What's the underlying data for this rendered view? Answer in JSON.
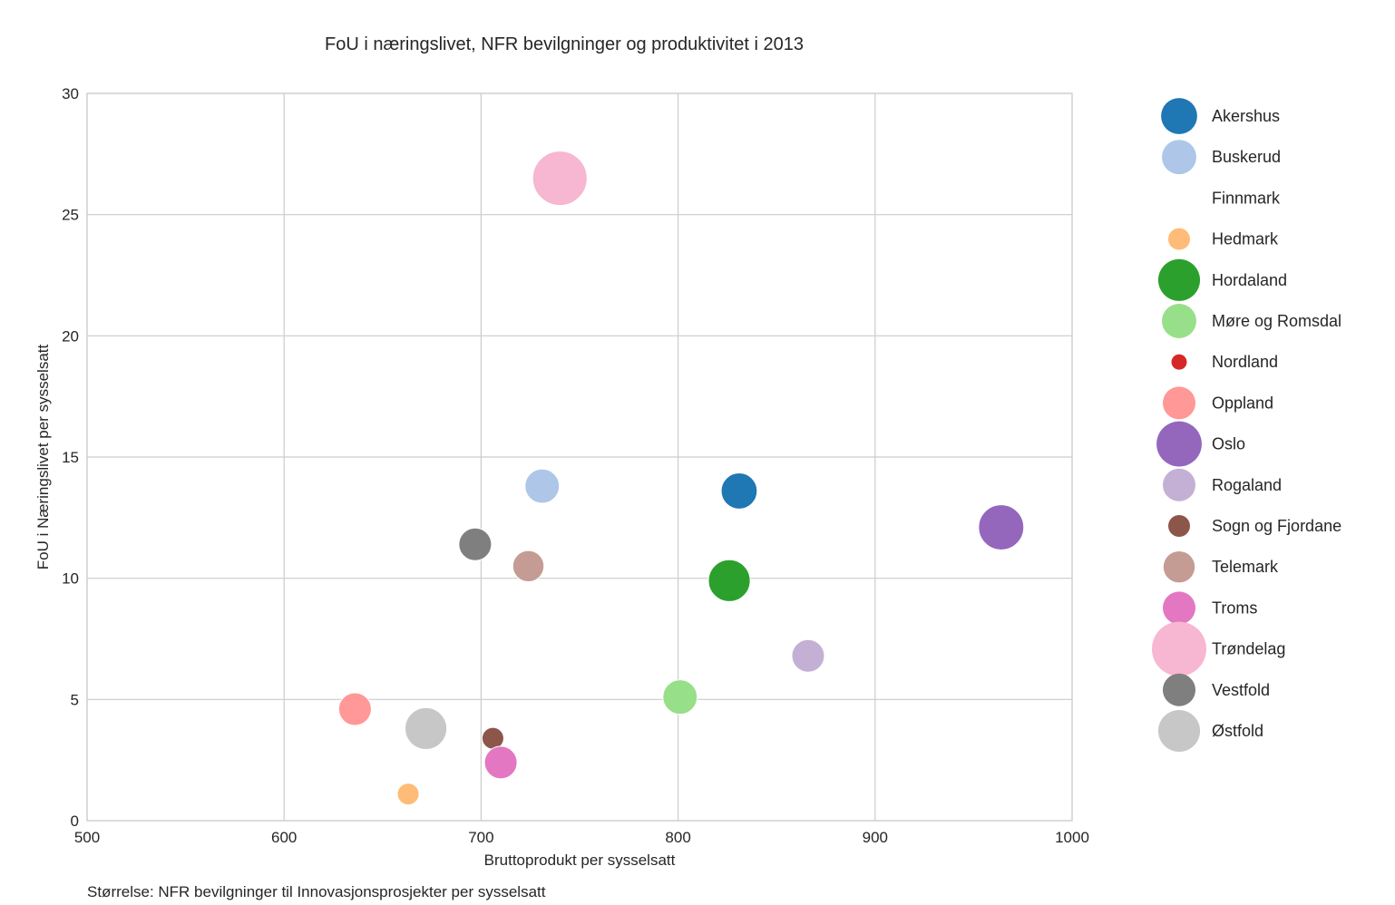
{
  "chart_data": {
    "type": "scatter",
    "title": "FoU i næringslivet, NFR bevilgninger og produktivitet i 2013",
    "xlabel": "Bruttoprodukt per sysselsatt",
    "ylabel": "FoU i Næringslivet per sysselsatt",
    "caption": "Størrelse: NFR bevilgninger til Innovasjonsprosjekter per sysselsatt",
    "xlim": [
      500,
      1000
    ],
    "ylim": [
      0,
      30
    ],
    "x_ticks": [
      "500",
      "600",
      "700",
      "800",
      "900",
      "1000"
    ],
    "y_ticks": [
      "0",
      "5",
      "10",
      "15",
      "20",
      "25",
      "30"
    ],
    "grid": true,
    "legend_position": "right",
    "size_encoding": "NFR bevilgninger til Innovasjonsprosjekter per sysselsatt",
    "series": [
      {
        "name": "Akershus",
        "x": 831,
        "y": 13.6,
        "size": 0.44,
        "color": "#1f77b4"
      },
      {
        "name": "Buskerud",
        "x": 731,
        "y": 13.8,
        "size": 0.4,
        "color": "#aec7e8"
      },
      {
        "name": "Finnmark",
        "x": null,
        "y": null,
        "size": 0,
        "color": "#ffffff"
      },
      {
        "name": "Hedmark",
        "x": 663,
        "y": 1.1,
        "size": 0.16,
        "color": "#ffbb78"
      },
      {
        "name": "Hordaland",
        "x": 826,
        "y": 9.9,
        "size": 0.59,
        "color": "#2ca02c"
      },
      {
        "name": "Møre og Romsdal",
        "x": 801,
        "y": 5.1,
        "size": 0.4,
        "color": "#98df8a"
      },
      {
        "name": "Nordland",
        "x": null,
        "y": null,
        "size": 0.08,
        "color": "#d62728"
      },
      {
        "name": "Oppland",
        "x": 636,
        "y": 4.6,
        "size": 0.36,
        "color": "#ff9896"
      },
      {
        "name": "Oslo",
        "x": 964,
        "y": 12.1,
        "size": 0.69,
        "color": "#9467bd"
      },
      {
        "name": "Rogaland",
        "x": 866,
        "y": 6.8,
        "size": 0.36,
        "color": "#c5b0d5"
      },
      {
        "name": "Sogn og Fjordane",
        "x": 706,
        "y": 3.4,
        "size": 0.16,
        "color": "#8c564b"
      },
      {
        "name": "Telemark",
        "x": 724,
        "y": 10.5,
        "size": 0.33,
        "color": "#c49c94"
      },
      {
        "name": "Troms",
        "x": 710,
        "y": 2.4,
        "size": 0.36,
        "color": "#e377c2"
      },
      {
        "name": "Trøndelag",
        "x": 740,
        "y": 26.5,
        "size": 1.0,
        "color": "#f7b6d2"
      },
      {
        "name": "Vestfold",
        "x": 697,
        "y": 11.4,
        "size": 0.36,
        "color": "#7f7f7f"
      },
      {
        "name": "Østfold",
        "x": 672,
        "y": 3.8,
        "size": 0.59,
        "color": "#c7c7c7"
      }
    ]
  }
}
